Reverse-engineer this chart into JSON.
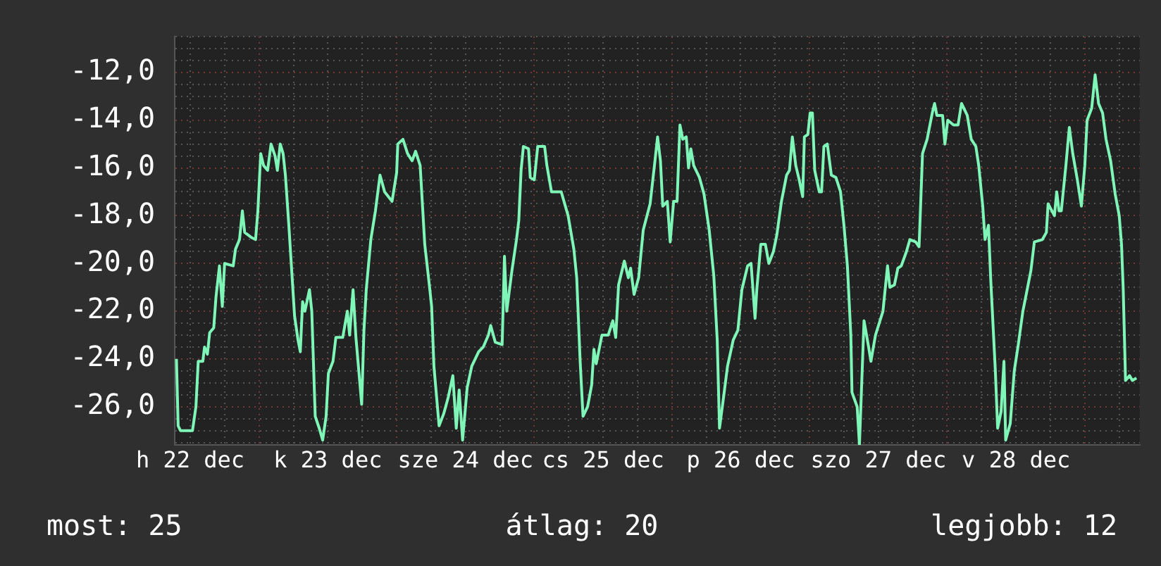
{
  "chart_data": {
    "type": "line",
    "xlim": [
      "--12-22T09:18",
      "--12-29T09:36"
    ],
    "ylim": [
      -27.6,
      -10.5
    ],
    "xticks": [
      {
        "value": "--12-22T12:00",
        "label": "h 22 dec"
      },
      {
        "value": "--12-22T18:00",
        "label": null
      },
      {
        "value": "--12-23T00:00",
        "label": null
      },
      {
        "value": "--12-23T06:00",
        "label": null
      },
      {
        "value": "--12-23T12:00",
        "label": "k 23 dec"
      },
      {
        "value": "--12-23T18:00",
        "label": null
      },
      {
        "value": "--12-24T00:00",
        "label": null
      },
      {
        "value": "--12-24T06:00",
        "label": null
      },
      {
        "value": "--12-24T12:00",
        "label": "sze 24 dec"
      },
      {
        "value": "--12-24T18:00",
        "label": null
      },
      {
        "value": "--12-25T00:00",
        "label": null
      },
      {
        "value": "--12-25T06:00",
        "label": null
      },
      {
        "value": "--12-25T12:00",
        "label": "cs 25 dec"
      },
      {
        "value": "--12-25T18:00",
        "label": null
      },
      {
        "value": "--12-26T00:00",
        "label": null
      },
      {
        "value": "--12-26T06:00",
        "label": null
      },
      {
        "value": "--12-26T12:00",
        "label": "p 26 dec"
      },
      {
        "value": "--12-26T18:00",
        "label": null
      },
      {
        "value": "--12-27T00:00",
        "label": null
      },
      {
        "value": "--12-27T06:00",
        "label": null
      },
      {
        "value": "--12-27T12:00",
        "label": "szo 27 dec"
      },
      {
        "value": "--12-27T18:00",
        "label": null
      },
      {
        "value": "--12-28T00:00",
        "label": null
      },
      {
        "value": "--12-28T06:00",
        "label": null
      },
      {
        "value": "--12-28T12:00",
        "label": "v 28 dec"
      },
      {
        "value": "--12-28T18:00",
        "label": null
      },
      {
        "value": "--12-29T00:00",
        "label": null
      },
      {
        "value": "--12-29T06:00",
        "label": null
      }
    ],
    "yticks": [
      {
        "value": -27.5,
        "label": null
      },
      {
        "value": -27,
        "label": null
      },
      {
        "value": -26.5,
        "label": null
      },
      {
        "value": -26,
        "label": "-26,0"
      },
      {
        "value": -25.5,
        "label": null
      },
      {
        "value": -25,
        "label": null
      },
      {
        "value": -24.5,
        "label": null
      },
      {
        "value": -24,
        "label": "-24,0"
      },
      {
        "value": -23.5,
        "label": null
      },
      {
        "value": -23,
        "label": null
      },
      {
        "value": -22.5,
        "label": null
      },
      {
        "value": -22,
        "label": "-22,0"
      },
      {
        "value": -21.5,
        "label": null
      },
      {
        "value": -21,
        "label": null
      },
      {
        "value": -20.5,
        "label": null
      },
      {
        "value": -20,
        "label": "-20,0"
      },
      {
        "value": -19.5,
        "label": null
      },
      {
        "value": -19,
        "label": null
      },
      {
        "value": -18.5,
        "label": null
      },
      {
        "value": -18,
        "label": "-18,0"
      },
      {
        "value": -17.5,
        "label": null
      },
      {
        "value": -17,
        "label": null
      },
      {
        "value": -16.5,
        "label": null
      },
      {
        "value": -16,
        "label": "-16,0"
      },
      {
        "value": -15.5,
        "label": null
      },
      {
        "value": -15,
        "label": null
      },
      {
        "value": -14.5,
        "label": null
      },
      {
        "value": -14,
        "label": "-14,0"
      },
      {
        "value": -13.5,
        "label": null
      },
      {
        "value": -13,
        "label": null
      },
      {
        "value": -12.5,
        "label": null
      },
      {
        "value": -12,
        "label": "-12,0"
      },
      {
        "value": -11.5,
        "label": null
      },
      {
        "value": -11,
        "label": null
      },
      {
        "value": -10.5,
        "label": null
      }
    ],
    "grid": true,
    "marker": "none",
    "line_style": "solid",
    "annotations": [
      "most: 25",
      "átlag: 20",
      "legjobb: 12"
    ],
    "series": [
      {
        "color": "#7ff5b8",
        "x": [
          "--12-22T09:36",
          "--12-22T09:54",
          "--12-22T10:18",
          "--12-22T12:24",
          "--12-22T13:00",
          "--12-22T13:24",
          "--12-22T14:12",
          "--12-22T14:30",
          "--12-22T15:00",
          "--12-22T15:24",
          "--12-22T16:06",
          "--12-22T16:30",
          "--12-22T17:06",
          "--12-22T17:18",
          "--12-22T17:36",
          "--12-22T18:00",
          "--12-22T19:30",
          "--12-22T19:54",
          "--12-22T20:36",
          "--12-22T21:06",
          "--12-22T21:30",
          "--12-22T22:36",
          "--12-22T23:24",
          "--12-22T23:48",
          "--12-23T00:18",
          "--12-23T00:48",
          "--12-23T01:30",
          "--12-23T02:06",
          "--12-23T02:48",
          "--12-23T03:12",
          "--12-23T03:42",
          "--12-23T04:12",
          "--12-23T04:36",
          "--12-23T05:12",
          "--12-23T05:42",
          "--12-23T06:12",
          "--12-23T06:48",
          "--12-23T07:12",
          "--12-23T07:36",
          "--12-23T08:00",
          "--12-23T08:48",
          "--12-23T09:12",
          "--12-23T09:48",
          "--12-23T10:30",
          "--12-23T11:06",
          "--12-23T11:42",
          "--12-23T12:06",
          "--12-23T12:54",
          "--12-23T13:24",
          "--12-23T14:36",
          "--12-23T15:24",
          "--12-23T15:48",
          "--12-23T16:24",
          "--12-23T16:54",
          "--12-23T17:24",
          "--12-23T17:54",
          "--12-23T18:18",
          "--12-23T18:42",
          "--12-23T19:30",
          "--12-23T20:18",
          "--12-23T21:06",
          "--12-23T21:54",
          "--12-23T23:12",
          "--12-24T00:00",
          "--12-24T00:12",
          "--12-24T01:06",
          "--12-24T01:54",
          "--12-24T02:42",
          "--12-24T03:18",
          "--12-24T04:06",
          "--12-24T04:54",
          "--12-24T05:42",
          "--12-24T06:06",
          "--12-24T06:30",
          "--12-24T07:24",
          "--12-24T08:12",
          "--12-24T09:00",
          "--12-24T09:48",
          "--12-24T10:24",
          "--12-24T10:54",
          "--12-24T11:30",
          "--12-24T12:18",
          "--12-24T13:06",
          "--12-24T14:18",
          "--12-24T15:06",
          "--12-24T16:00",
          "--12-24T16:24",
          "--12-24T17:12",
          "--12-24T18:24",
          "--12-24T18:48",
          "--12-24T19:12",
          "--12-24T20:06",
          "--12-24T20:54",
          "--12-24T21:18",
          "--12-24T21:42",
          "--12-24T22:06",
          "--12-24T23:00",
          "--12-24T23:18",
          "--12-25T00:00",
          "--12-25T00:36",
          "--12-25T01:48",
          "--12-25T02:12",
          "--12-25T03:00",
          "--12-25T04:42",
          "--12-25T05:54",
          "--12-25T06:54",
          "--12-25T07:24",
          "--12-25T08:00",
          "--12-25T08:30",
          "--12-25T09:18",
          "--12-25T10:00",
          "--12-25T10:24",
          "--12-25T10:48",
          "--12-25T11:48",
          "--12-25T12:54",
          "--12-25T13:42",
          "--12-25T14:12",
          "--12-25T14:42",
          "--12-25T15:42",
          "--12-25T16:24",
          "--12-25T16:48",
          "--12-25T17:24",
          "--12-25T18:12",
          "--12-25T19:00",
          "--12-25T20:12",
          "--12-25T21:00",
          "--12-25T21:30",
          "--12-25T22:00",
          "--12-25T22:24",
          "--12-25T23:12",
          "--12-25T23:42",
          "--12-26T00:18",
          "--12-26T00:54",
          "--12-26T01:24",
          "--12-26T01:54",
          "--12-26T02:30",
          "--12-26T02:54",
          "--12-26T03:18",
          "--12-26T03:48",
          "--12-26T04:48",
          "--12-26T05:36",
          "--12-26T06:30",
          "--12-26T07:18",
          "--12-26T07:54",
          "--12-26T08:18",
          "--12-26T08:54",
          "--12-26T09:42",
          "--12-26T10:42",
          "--12-26T11:30",
          "--12-26T12:12",
          "--12-26T13:12",
          "--12-26T13:48",
          "--12-26T14:30",
          "--12-26T14:48",
          "--12-26T15:30",
          "--12-26T16:18",
          "--12-26T16:54",
          "--12-26T17:42",
          "--12-26T18:18",
          "--12-26T19:06",
          "--12-26T20:00",
          "--12-26T20:30",
          "--12-26T21:00",
          "--12-26T21:36",
          "--12-26T22:12",
          "--12-26T22:48",
          "--12-26T23:06",
          "--12-26T23:42",
          "--12-27T00:06",
          "--12-27T00:30",
          "--12-27T00:54",
          "--12-27T01:42",
          "--12-27T02:06",
          "--12-27T02:30",
          "--12-27T03:06",
          "--12-27T03:48",
          "--12-27T04:36",
          "--12-27T05:24",
          "--12-27T06:00",
          "--12-27T06:36",
          "--12-27T07:12",
          "--12-27T07:24",
          "--12-27T08:18",
          "--12-27T08:42",
          "--12-27T09:30",
          "--12-27T10:18",
          "--12-27T10:42",
          "--12-27T11:30",
          "--12-27T12:48",
          "--12-27T13:36",
          "--12-27T14:00",
          "--12-27T14:48",
          "--12-27T15:24",
          "--12-27T16:00",
          "--12-27T16:54",
          "--12-27T17:30",
          "--12-27T18:30",
          "--12-27T19:06",
          "--12-27T19:42",
          "--12-27T20:30",
          "--12-27T21:24",
          "--12-27T21:48",
          "--12-27T22:12",
          "--12-27T23:12",
          "--12-27T23:36",
          "--12-28T00:06",
          "--12-28T01:06",
          "--12-28T01:54",
          "--12-28T02:30",
          "--12-28T03:30",
          "--12-28T04:12",
          "--12-28T05:00",
          "--12-28T05:30",
          "--12-28T06:12",
          "--12-28T06:36",
          "--12-28T07:12",
          "--12-28T07:36",
          "--12-28T08:24",
          "--12-28T08:48",
          "--12-28T09:24",
          "--12-28T09:54",
          "--12-28T10:12",
          "--12-28T11:00",
          "--12-28T11:42",
          "--12-28T12:24",
          "--12-28T13:12",
          "--12-28T13:42",
          "--12-28T14:36",
          "--12-28T15:12",
          "--12-28T16:36",
          "--12-28T17:18",
          "--12-28T17:36",
          "--12-28T18:42",
          "--12-28T19:06",
          "--12-28T19:30",
          "--12-28T19:54",
          "--12-28T20:42",
          "--12-28T21:18",
          "--12-28T21:54",
          "--12-28T22:42",
          "--12-28T23:24",
          "--12-29T00:00",
          "--12-29T00:24",
          "--12-29T01:12",
          "--12-29T01:48",
          "--12-29T02:24",
          "--12-29T03:06",
          "--12-29T03:42",
          "--12-29T04:30",
          "--12-29T05:18",
          "--12-29T06:00",
          "--12-29T06:24",
          "--12-29T06:42",
          "--12-29T07:06",
          "--12-29T07:48",
          "--12-29T08:18",
          "--12-29T09:00"
        ],
        "values": [
          -24.0,
          -26.8,
          -27.0,
          -27.0,
          -26.0,
          -24.1,
          -24.1,
          -23.5,
          -23.8,
          -22.9,
          -22.7,
          -21.4,
          -20.1,
          -20.8,
          -21.8,
          -20.0,
          -20.1,
          -19.4,
          -19.0,
          -17.8,
          -18.7,
          -18.9,
          -19.0,
          -17.8,
          -15.4,
          -15.9,
          -16.1,
          -15.0,
          -15.5,
          -16.1,
          -15.0,
          -15.4,
          -16.3,
          -18.4,
          -20.3,
          -22.2,
          -23.2,
          -23.7,
          -21.6,
          -22.0,
          -21.1,
          -22.0,
          -26.4,
          -26.9,
          -27.4,
          -26.4,
          -24.6,
          -24.1,
          -23.1,
          -23.1,
          -22.0,
          -23.0,
          -21.1,
          -23.1,
          -24.5,
          -25.9,
          -22.8,
          -21.1,
          -19.0,
          -17.8,
          -16.3,
          -17.0,
          -17.4,
          -16.2,
          -15.0,
          -14.8,
          -15.4,
          -15.7,
          -15.3,
          -15.9,
          -19.2,
          -20.9,
          -21.8,
          -24.3,
          -26.8,
          -26.3,
          -25.6,
          -24.7,
          -26.9,
          -25.3,
          -27.4,
          -25.2,
          -24.3,
          -23.7,
          -23.5,
          -23.0,
          -22.6,
          -23.3,
          -23.4,
          -19.7,
          -22.0,
          -20.3,
          -19.0,
          -18.2,
          -16.1,
          -15.1,
          -15.2,
          -16.4,
          -16.5,
          -15.1,
          -15.1,
          -15.9,
          -17.0,
          -17.0,
          -18.0,
          -19.4,
          -20.6,
          -24.1,
          -26.4,
          -26.0,
          -25.1,
          -23.6,
          -24.2,
          -23.0,
          -23.0,
          -22.4,
          -23.1,
          -20.9,
          -19.9,
          -20.6,
          -20.2,
          -21.3,
          -20.6,
          -18.6,
          -17.5,
          -15.8,
          -14.7,
          -15.7,
          -17.6,
          -17.4,
          -19.1,
          -17.4,
          -17.4,
          -14.2,
          -14.8,
          -14.7,
          -16.0,
          -15.2,
          -15.9,
          -16.4,
          -17.1,
          -18.6,
          -20.5,
          -23.2,
          -26.9,
          -25.8,
          -24.3,
          -23.2,
          -22.8,
          -21.1,
          -20.1,
          -20.0,
          -22.3,
          -21.1,
          -19.2,
          -19.2,
          -20.0,
          -19.5,
          -18.8,
          -17.4,
          -16.3,
          -16.1,
          -14.7,
          -15.9,
          -16.5,
          -17.2,
          -14.7,
          -14.6,
          -13.7,
          -13.7,
          -16.1,
          -17.0,
          -17.0,
          -15.1,
          -15.0,
          -16.3,
          -16.4,
          -17.0,
          -18.4,
          -20.1,
          -23.0,
          -25.4,
          -26.0,
          -27.6,
          -22.4,
          -23.5,
          -24.1,
          -23.0,
          -22.0,
          -20.1,
          -21.0,
          -20.9,
          -20.2,
          -20.1,
          -19.5,
          -19.0,
          -19.1,
          -19.3,
          -15.4,
          -14.8,
          -13.7,
          -13.3,
          -13.8,
          -13.8,
          -15.0,
          -14.0,
          -14.2,
          -14.2,
          -13.3,
          -13.8,
          -14.8,
          -15.1,
          -15.9,
          -17.6,
          -19.0,
          -18.4,
          -20.7,
          -24.5,
          -26.9,
          -26.2,
          -24.1,
          -27.4,
          -26.7,
          -24.5,
          -23.4,
          -22.0,
          -21.4,
          -20.3,
          -19.1,
          -19.0,
          -18.7,
          -17.5,
          -18.0,
          -17.0,
          -17.8,
          -17.8,
          -15.9,
          -14.3,
          -15.4,
          -16.5,
          -17.6,
          -15.9,
          -14.0,
          -13.5,
          -12.1,
          -13.3,
          -13.7,
          -14.8,
          -15.7,
          -17.1,
          -18.0,
          -19.2,
          -21.1,
          -24.9,
          -24.7,
          -24.9,
          -24.8
        ]
      }
    ]
  }
}
